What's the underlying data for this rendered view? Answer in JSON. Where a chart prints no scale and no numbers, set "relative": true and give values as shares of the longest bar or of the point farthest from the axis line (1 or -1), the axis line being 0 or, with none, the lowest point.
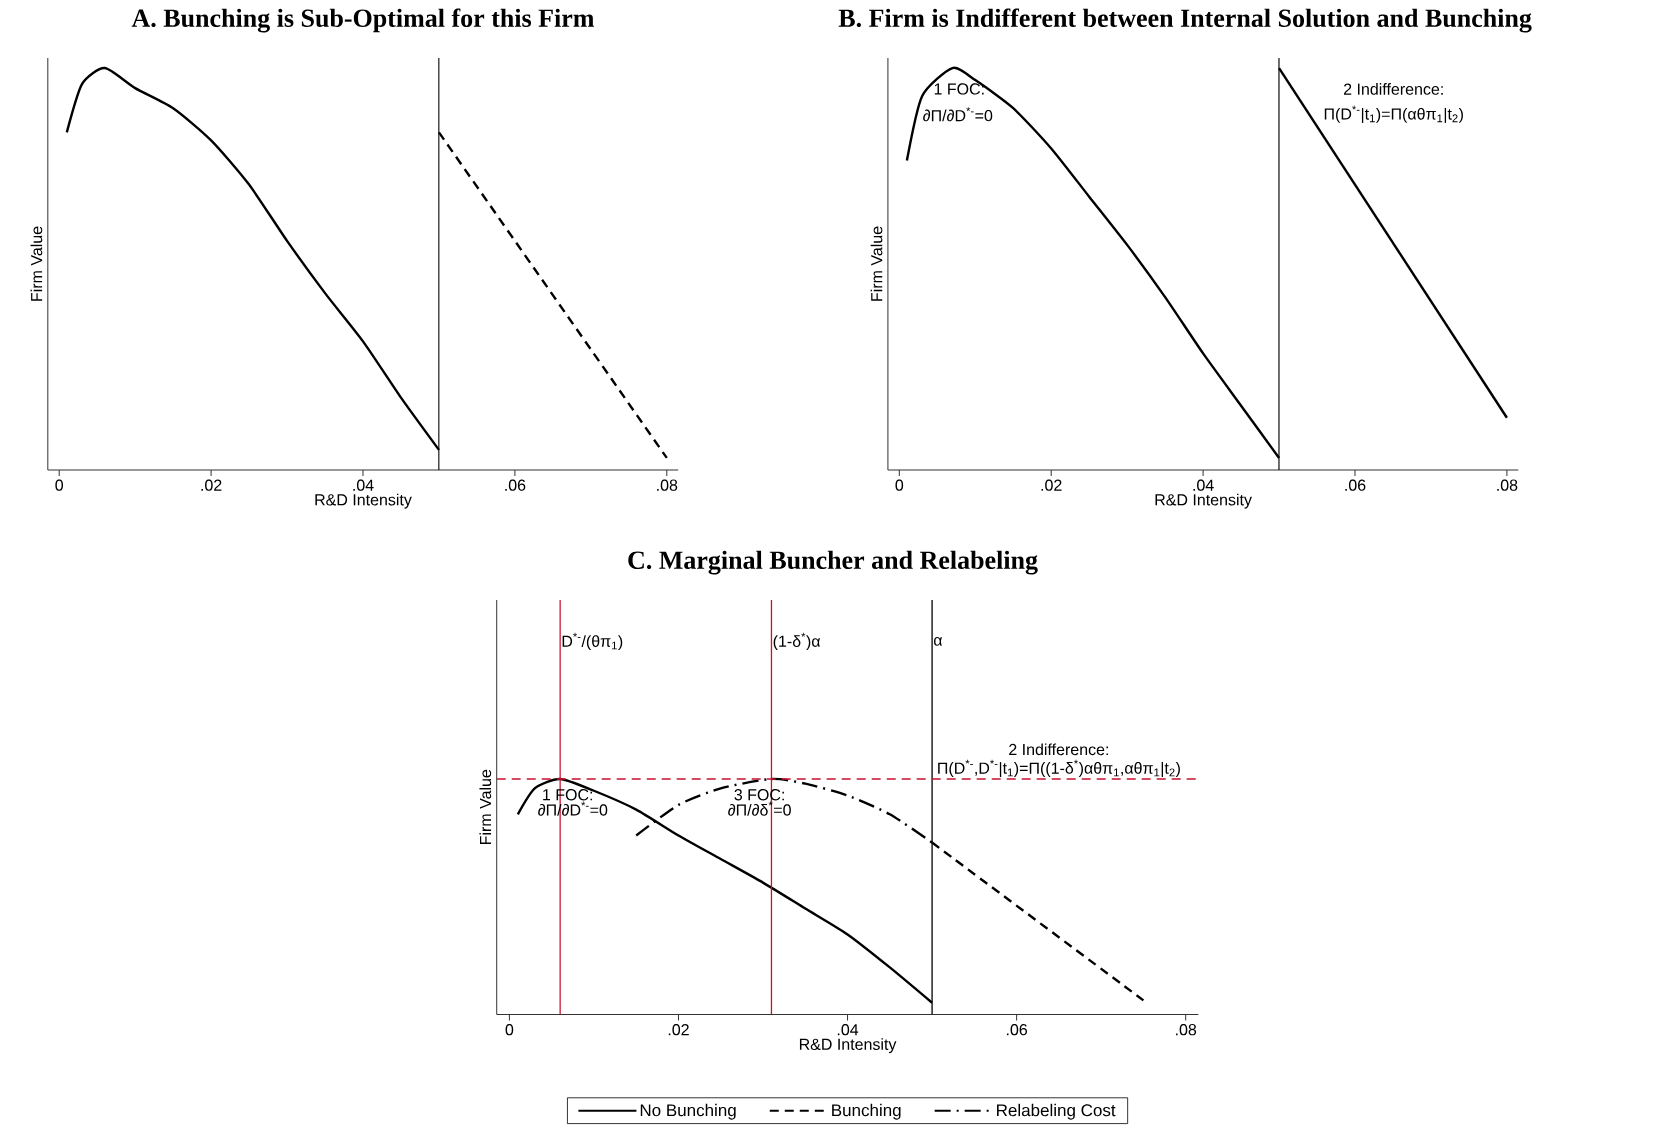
{
  "chart_data": [
    {
      "type": "line",
      "title": "A. Bunching is Sub-Optimal for this Firm",
      "xlabel": "R&D Intensity",
      "ylabel": "Firm Value",
      "relative": true,
      "xlim": [
        -0.0015,
        0.0815
      ],
      "xticks": [
        0,
        {
          "value": 0.02,
          "label": ".02"
        },
        {
          "value": 0.04,
          "label": ".04"
        },
        {
          "value": 0.06,
          "label": ".06"
        },
        {
          "value": 0.08,
          "label": ".08"
        }
      ],
      "series": [
        {
          "color": "#000000",
          "line_style": "solid",
          "x": [
            0.001,
            0.003,
            0.006,
            0.01,
            0.015,
            0.02,
            0.025,
            0.03,
            0.035,
            0.04,
            0.045,
            0.05
          ],
          "values": [
            0.84,
            0.96,
            1.0,
            0.95,
            0.9,
            0.82,
            0.71,
            0.57,
            0.44,
            0.32,
            0.18,
            0.05
          ]
        },
        {
          "color": "#000000",
          "line_style": "dashed",
          "x": [
            0.05,
            0.08
          ],
          "values": [
            0.84,
            0.03
          ]
        }
      ],
      "ref_lines": [
        {
          "axis": "x",
          "value": 0.05,
          "color": "#000000",
          "line_style": "solid"
        }
      ]
    },
    {
      "type": "line",
      "title": "B. Firm is Indifferent between Internal Solution and Bunching",
      "xlabel": "R&D Intensity",
      "ylabel": "Firm Value",
      "relative": true,
      "xlim": [
        -0.0015,
        0.0815
      ],
      "xticks": [
        0,
        {
          "value": 0.02,
          "label": ".02"
        },
        {
          "value": 0.04,
          "label": ".04"
        },
        {
          "value": 0.06,
          "label": ".06"
        },
        {
          "value": 0.08,
          "label": ".08"
        }
      ],
      "series": [
        {
          "color": "#000000",
          "line_style": "solid",
          "x": [
            0.001,
            0.003,
            0.007,
            0.01,
            0.015,
            0.02,
            0.025,
            0.03,
            0.035,
            0.04,
            0.045,
            0.05
          ],
          "values": [
            0.77,
            0.93,
            1.0,
            0.97,
            0.9,
            0.8,
            0.68,
            0.56,
            0.43,
            0.29,
            0.16,
            0.03
          ]
        },
        {
          "color": "#000000",
          "line_style": "solid",
          "x": [
            0.05,
            0.08
          ],
          "values": [
            1.0,
            0.13
          ]
        }
      ],
      "ref_lines": [
        {
          "axis": "x",
          "value": 0.05,
          "color": "#000000",
          "line_style": "solid"
        }
      ],
      "annotations": [
        "1 FOC:",
        "∂Π/∂D$^{*-}$=0",
        "2 Indifference:",
        "Π(D$^{*-}$|t$_{1}$)=Π(αθπ$_{1}$|t$_{2}$)"
      ]
    },
    {
      "type": "line",
      "title": "C. Marginal Buncher and Relabeling",
      "xlabel": "R&D Intensity",
      "ylabel": "Firm Value",
      "relative": true,
      "legend": "bottom",
      "xlim": [
        -0.0015,
        0.0815
      ],
      "xticks": [
        0,
        {
          "value": 0.02,
          "label": ".02"
        },
        {
          "value": 0.04,
          "label": ".04"
        },
        {
          "value": 0.06,
          "label": ".06"
        },
        {
          "value": 0.08,
          "label": ".08"
        }
      ],
      "series": [
        {
          "name": "No Bunching",
          "color": "#000000",
          "line_style": "solid",
          "x": [
            0.001,
            0.003,
            0.006,
            0.01,
            0.015,
            0.02,
            0.025,
            0.03,
            0.035,
            0.04,
            0.045,
            0.05
          ],
          "values": [
            0.85,
            0.96,
            1.0,
            0.95,
            0.87,
            0.76,
            0.66,
            0.56,
            0.45,
            0.34,
            0.2,
            0.05
          ]
        },
        {
          "name": "Bunching",
          "color": "#000000",
          "line_style": "dashed",
          "x": [
            0.05,
            0.075
          ],
          "values": [
            0.73,
            0.06
          ]
        },
        {
          "name": "Relabeling Cost",
          "color": "#000000",
          "line_style": "dashdot",
          "x": [
            0.015,
            0.02,
            0.025,
            0.031,
            0.035,
            0.04,
            0.045,
            0.05
          ],
          "values": [
            0.76,
            0.89,
            0.96,
            1.0,
            0.98,
            0.93,
            0.85,
            0.73
          ]
        }
      ],
      "ref_lines": [
        {
          "axis": "x",
          "value": 0.006,
          "label": "D$^{*-}$/(θπ$_{1}$)",
          "color": "#c8102e",
          "line_style": "solid"
        },
        {
          "axis": "x",
          "value": 0.031,
          "label": "(1-δ$^{*}$)α",
          "color": "#c8102e",
          "line_style": "solid"
        },
        {
          "axis": "x",
          "value": 0.05,
          "label": "α",
          "color": "#000000",
          "line_style": "solid"
        },
        {
          "axis": "y",
          "value": 1.0,
          "color": "#c8102e",
          "line_style": "dashed"
        }
      ],
      "annotations": [
        "2 Indifference:",
        "Π(D$^{*-}$,D$^{*-}$|t$_{1}$)=Π((1-δ$^{*}$)αθπ$_{1}$,αθπ$_{1}$|t$_{2}$)",
        "1 FOC:",
        "∂Π/∂D$^{*-}$=0",
        "3 FOC:",
        "∂Π/∂δ$^{*}$=0"
      ]
    }
  ]
}
